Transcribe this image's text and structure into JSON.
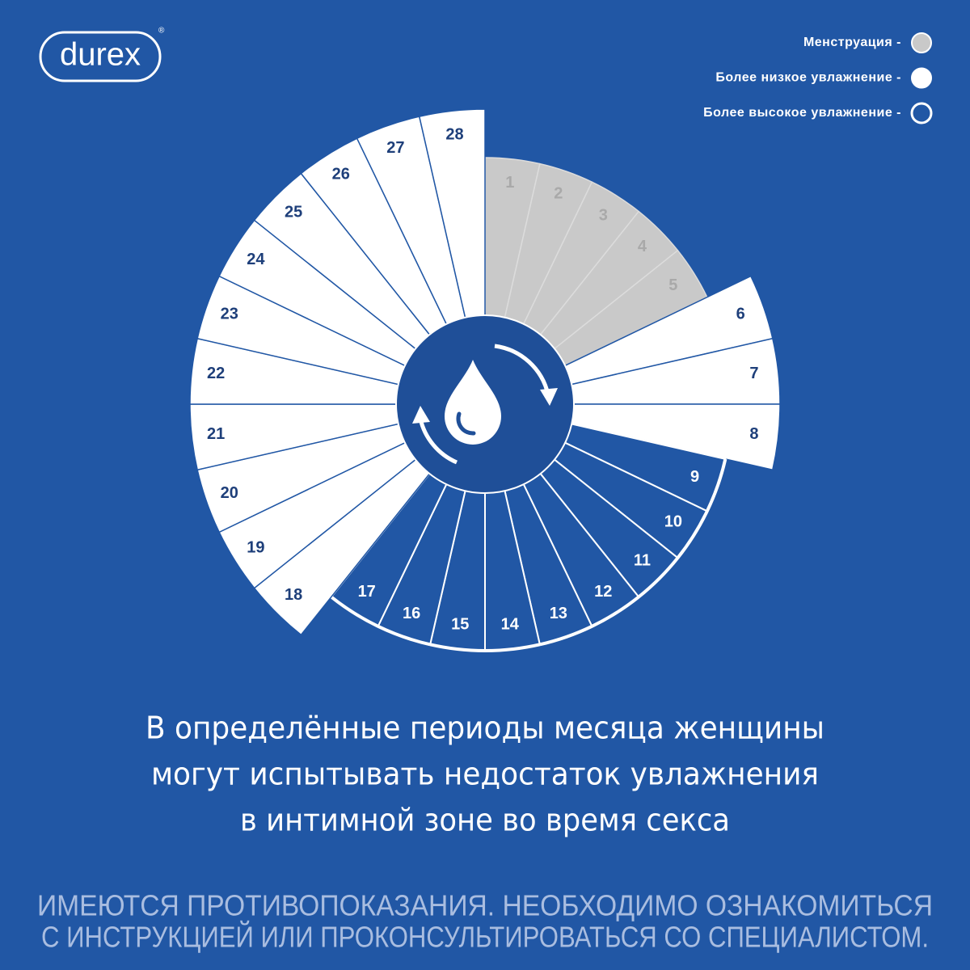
{
  "logo": {
    "text": "durex",
    "mark": "®"
  },
  "legend": [
    {
      "label": "Менструация -"
    },
    {
      "label": "Более низкое увлажнение -"
    },
    {
      "label": "Более высокое увлажнение -"
    }
  ],
  "days": [
    1,
    2,
    3,
    4,
    5,
    6,
    7,
    8,
    9,
    10,
    11,
    12,
    13,
    14,
    15,
    16,
    17,
    18,
    19,
    20,
    21,
    22,
    23,
    24,
    25,
    26,
    27,
    28
  ],
  "day_phase": [
    0,
    0,
    0,
    0,
    0,
    1,
    1,
    1,
    2,
    2,
    2,
    2,
    2,
    2,
    2,
    2,
    2,
    1,
    1,
    1,
    1,
    1,
    1,
    1,
    1,
    1,
    1,
    1
  ],
  "headline": [
    "В определённые периоды месяца женщины",
    "могут испытывать недостаток увлажнения",
    "в интимной зоне во время секса"
  ],
  "disclaimer": [
    "ИМЕЮТСЯ ПРОТИВОПОКАЗАНИЯ. НЕОБХОДИМО ОЗНАКОМИТЬСЯ",
    "С ИНСТРУКЦИЕЙ ИЛИ ПРОКОНСУЛЬТИРОВАТЬСЯ СО СПЕЦИАЛИСТОМ."
  ]
}
